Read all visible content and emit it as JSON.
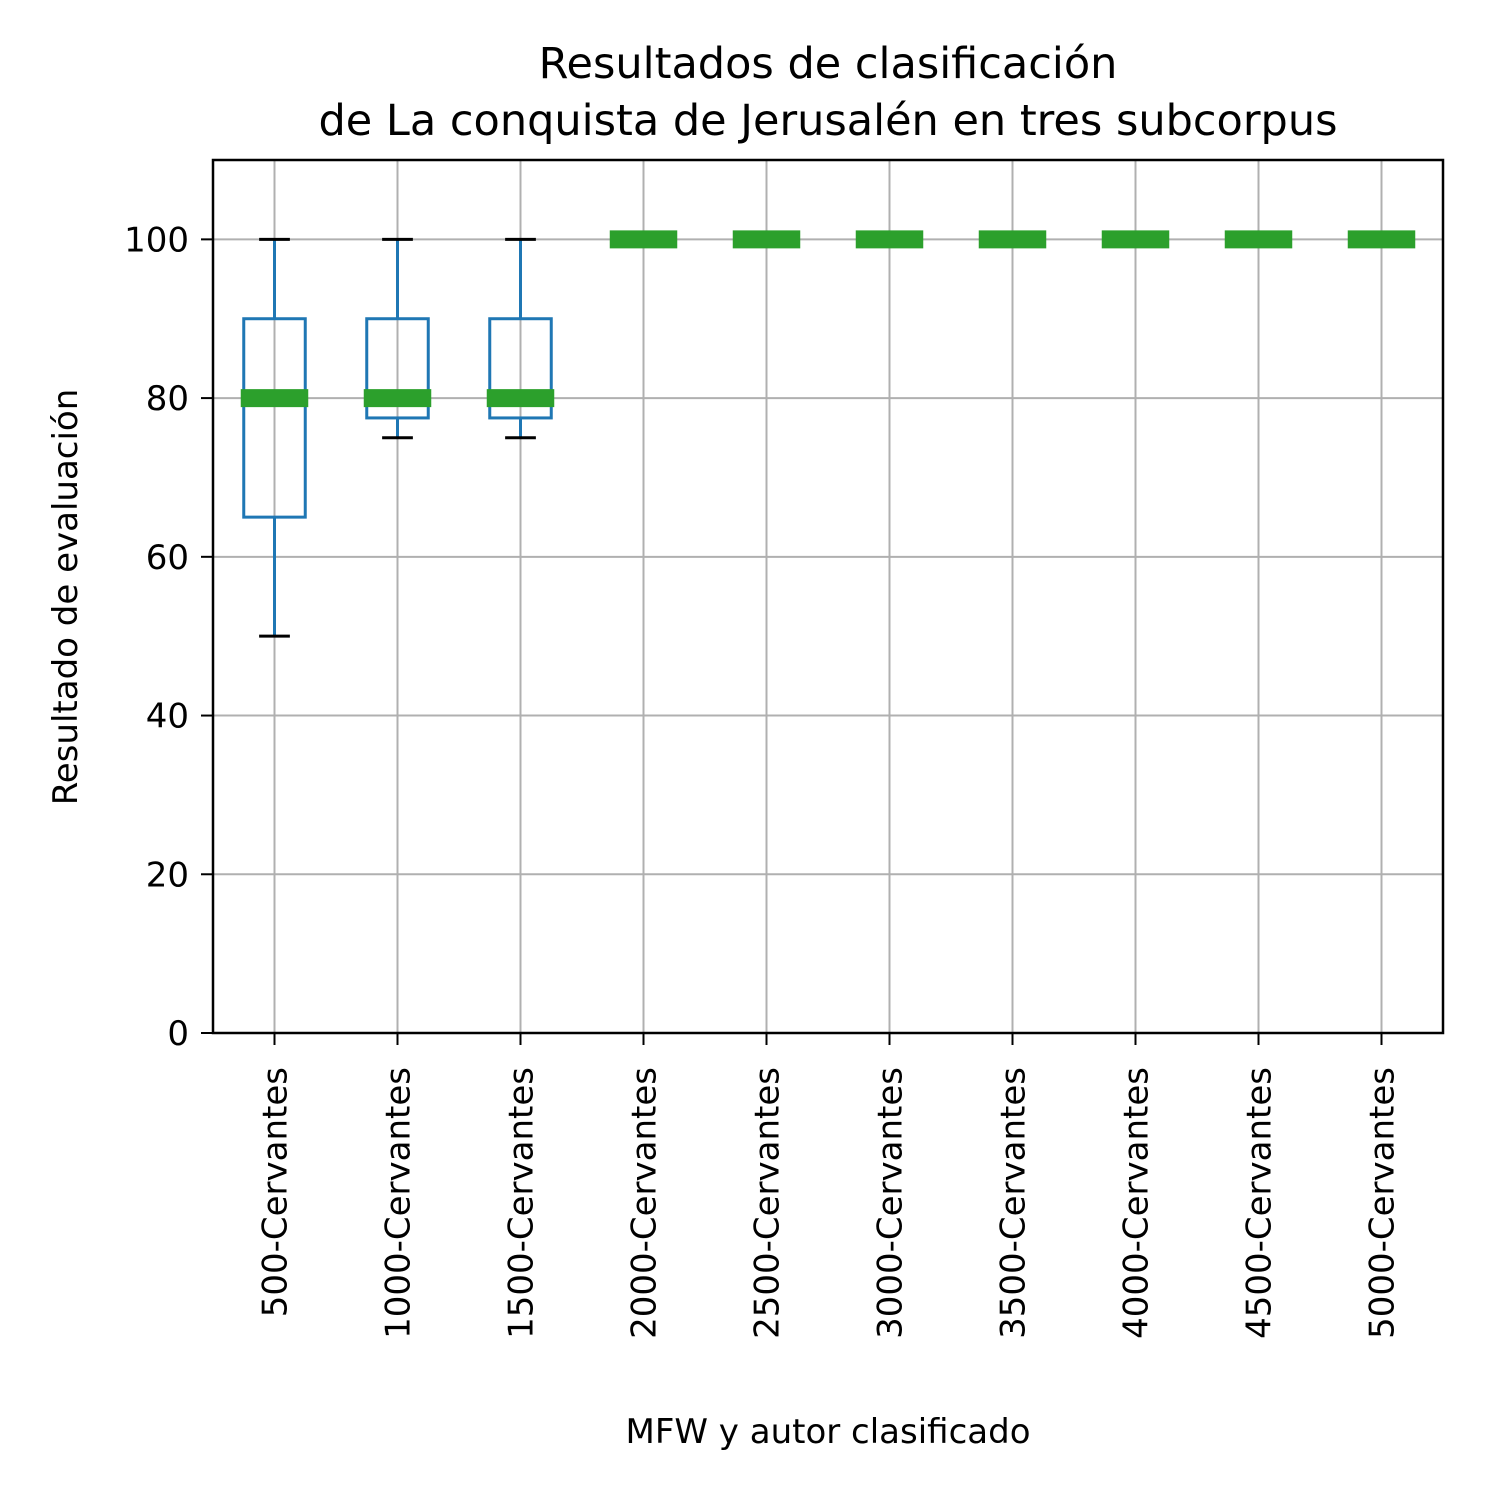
{
  "chart_data": {
    "type": "box",
    "title_lines": [
      "Resultados de clasificación",
      "de La conquista de Jerusalén en tres subcorpus"
    ],
    "xlabel": "MFW y autor clasificado",
    "ylabel": "Resultado de evaluación",
    "ylim": [
      0,
      110
    ],
    "yticks": [
      0,
      20,
      40,
      60,
      80,
      100
    ],
    "grid": true,
    "colors": {
      "box": "#1f77b4",
      "median": "#2ca02c",
      "whisker_cap": "#000000",
      "grid": "#b0b0b0"
    },
    "categories": [
      "500-Cervantes",
      "1000-Cervantes",
      "1500-Cervantes",
      "2000-Cervantes",
      "2500-Cervantes",
      "3000-Cervantes",
      "3500-Cervantes",
      "4000-Cervantes",
      "4500-Cervantes",
      "5000-Cervantes"
    ],
    "boxes": [
      {
        "whislo": 50,
        "q1": 65,
        "med": 80,
        "q3": 90,
        "whishi": 100
      },
      {
        "whislo": 75,
        "q1": 77.5,
        "med": 80,
        "q3": 90,
        "whishi": 100
      },
      {
        "whislo": 75,
        "q1": 77.5,
        "med": 80,
        "q3": 90,
        "whishi": 100
      },
      {
        "whislo": 100,
        "q1": 100,
        "med": 100,
        "q3": 100,
        "whishi": 100
      },
      {
        "whislo": 100,
        "q1": 100,
        "med": 100,
        "q3": 100,
        "whishi": 100
      },
      {
        "whislo": 100,
        "q1": 100,
        "med": 100,
        "q3": 100,
        "whishi": 100
      },
      {
        "whislo": 100,
        "q1": 100,
        "med": 100,
        "q3": 100,
        "whishi": 100
      },
      {
        "whislo": 100,
        "q1": 100,
        "med": 100,
        "q3": 100,
        "whishi": 100
      },
      {
        "whislo": 100,
        "q1": 100,
        "med": 100,
        "q3": 100,
        "whishi": 100
      },
      {
        "whislo": 100,
        "q1": 100,
        "med": 100,
        "q3": 100,
        "whishi": 100
      }
    ]
  }
}
